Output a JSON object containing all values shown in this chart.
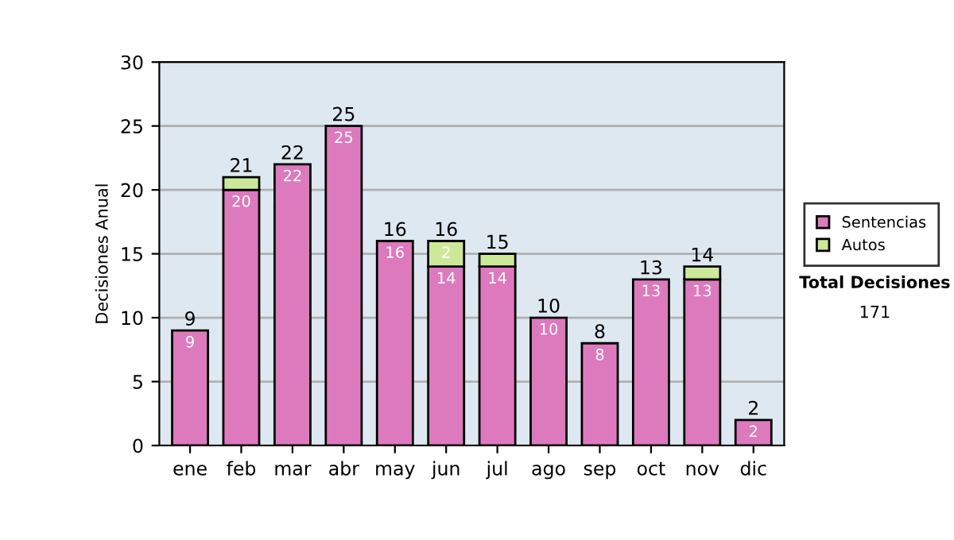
{
  "chart_data": {
    "type": "bar",
    "stacked": true,
    "ylabel": "Decisiones Anual",
    "categories": [
      "ene",
      "feb",
      "mar",
      "abr",
      "may",
      "jun",
      "jul",
      "ago",
      "sep",
      "oct",
      "nov",
      "dic"
    ],
    "series": [
      {
        "name": "Sentencias",
        "color": "#dd7abd",
        "values": [
          9,
          20,
          22,
          25,
          16,
          14,
          14,
          10,
          8,
          13,
          13,
          2
        ],
        "value_labels": [
          "9",
          "20",
          "22",
          "25",
          "16",
          "14",
          "14",
          "10",
          "8",
          "13",
          "13",
          "2"
        ]
      },
      {
        "name": "Autos",
        "color": "#cce99a",
        "values": [
          null,
          1,
          null,
          null,
          null,
          2,
          1,
          null,
          null,
          null,
          1,
          null
        ],
        "value_labels": [
          null,
          null,
          null,
          null,
          null,
          "2",
          null,
          null,
          null,
          null,
          null,
          null
        ]
      }
    ],
    "totals": [
      "9",
      "21",
      "22",
      "25",
      "16",
      "16",
      "15",
      "10",
      "8",
      "13",
      "14",
      "2"
    ],
    "ylim": [
      0,
      30
    ],
    "yticks": [
      0,
      5,
      10,
      15,
      20,
      25,
      30
    ],
    "grid": "y",
    "legend": "right",
    "annotations": [
      "Total Decisiones",
      "171"
    ]
  }
}
